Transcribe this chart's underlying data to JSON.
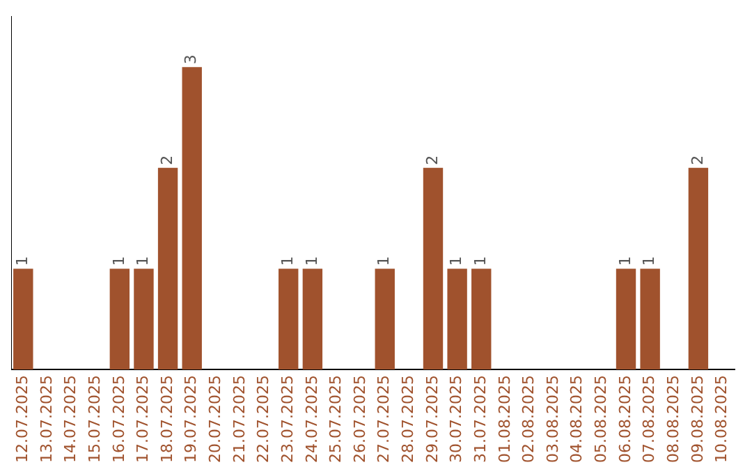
{
  "chart_data": {
    "type": "bar",
    "categories": [
      "12.07.2025",
      "13.07.2025",
      "14.07.2025",
      "15.07.2025",
      "16.07.2025",
      "17.07.2025",
      "18.07.2025",
      "19.07.2025",
      "20.07.2025",
      "21.07.2025",
      "22.07.2025",
      "23.07.2025",
      "24.07.2025",
      "25.07.2025",
      "26.07.2025",
      "27.07.2025",
      "28.07.2025",
      "29.07.2025",
      "30.07.2025",
      "31.07.2025",
      "01.08.2025",
      "02.08.2025",
      "03.08.2025",
      "04.08.2025",
      "05.08.2025",
      "06.08.2025",
      "07.08.2025",
      "08.08.2025",
      "09.08.2025",
      "10.08.2025"
    ],
    "values": [
      1,
      0,
      0,
      0,
      1,
      1,
      2,
      3,
      0,
      0,
      0,
      1,
      1,
      0,
      0,
      1,
      0,
      2,
      1,
      1,
      0,
      0,
      0,
      0,
      0,
      1,
      1,
      0,
      2,
      0
    ],
    "value_labels": [
      "1",
      null,
      null,
      null,
      "1",
      "1",
      "2",
      "3",
      null,
      null,
      null,
      "1",
      "1",
      null,
      null,
      "1",
      null,
      "2",
      "1",
      "1",
      null,
      null,
      null,
      null,
      null,
      "1",
      "1",
      null,
      "2",
      null
    ],
    "color": "#a0522d",
    "grid": false,
    "legend": false
  }
}
